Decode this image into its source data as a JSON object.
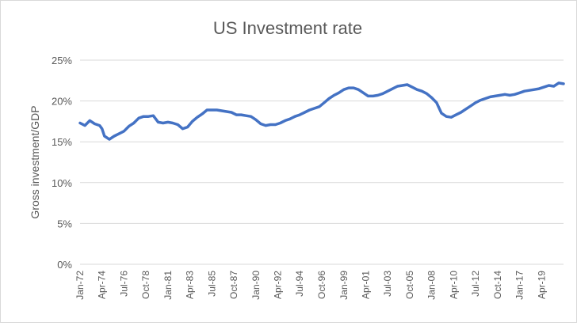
{
  "chart_data": {
    "type": "line",
    "title": "US Investment rate",
    "xlabel": "",
    "ylabel": "Gross investment/GDP",
    "ylim": [
      0,
      25
    ],
    "ytick_labels": [
      "0%",
      "5%",
      "10%",
      "15%",
      "20%",
      "25%"
    ],
    "x_tick_labels": [
      "Jan-72",
      "Apr-74",
      "Jul-76",
      "Oct-78",
      "Jan-81",
      "Apr-83",
      "Jul-85",
      "Oct-87",
      "Jan-90",
      "Apr-92",
      "Jul-94",
      "Oct-96",
      "Jan-99",
      "Apr-01",
      "Jul-03",
      "Oct-05",
      "Jan-08",
      "Apr-10",
      "Jul-12",
      "Oct-14",
      "Jan-17",
      "Apr-19"
    ],
    "grid": true,
    "legend": "none",
    "line_color": "#4472c4",
    "series": [
      {
        "x": [
          "1972-01-01",
          "1972-07-01",
          "1973-01-01",
          "1973-07-01",
          "1974-01-01",
          "1974-04-01",
          "1974-07-01",
          "1975-01-01",
          "1975-07-01",
          "1976-01-01",
          "1976-07-01",
          "1977-01-01",
          "1977-07-01",
          "1978-01-01",
          "1978-07-01",
          "1979-01-01",
          "1979-07-01",
          "1980-01-01",
          "1980-07-01",
          "1981-01-01",
          "1981-07-01",
          "1982-01-01",
          "1982-07-01",
          "1983-01-01",
          "1983-07-01",
          "1984-01-01",
          "1984-07-01",
          "1985-01-01",
          "1985-07-01",
          "1986-01-01",
          "1986-07-01",
          "1987-01-01",
          "1987-07-01",
          "1988-01-01",
          "1988-07-01",
          "1989-01-01",
          "1989-07-01",
          "1990-01-01",
          "1990-07-01",
          "1991-01-01",
          "1991-07-01",
          "1992-01-01",
          "1992-07-01",
          "1993-01-01",
          "1993-07-01",
          "1994-01-01",
          "1994-07-01",
          "1995-01-01",
          "1995-07-01",
          "1996-01-01",
          "1996-07-01",
          "1997-01-01",
          "1997-07-01",
          "1998-01-01",
          "1998-07-01",
          "1999-01-01",
          "1999-07-01",
          "2000-01-01",
          "2000-07-01",
          "2001-01-01",
          "2001-07-01",
          "2002-01-01",
          "2002-07-01",
          "2003-01-01",
          "2003-07-01",
          "2004-01-01",
          "2004-07-01",
          "2005-01-01",
          "2005-07-01",
          "2006-01-01",
          "2006-07-01",
          "2007-01-01",
          "2007-07-01",
          "2008-01-01",
          "2008-07-01",
          "2009-01-01",
          "2009-07-01",
          "2010-01-01",
          "2010-07-01",
          "2011-01-01",
          "2011-07-01",
          "2012-01-01",
          "2012-07-01",
          "2013-01-01",
          "2013-07-01",
          "2014-01-01",
          "2014-07-01",
          "2015-01-01",
          "2015-07-01",
          "2016-01-01",
          "2016-07-01",
          "2017-01-01",
          "2017-07-01",
          "2018-01-01",
          "2018-07-01",
          "2019-01-01",
          "2019-07-01",
          "2020-01-01",
          "2020-07-01",
          "2021-01-01",
          "2021-07-01"
        ],
        "values": [
          17.3,
          17.0,
          17.6,
          17.2,
          17.0,
          16.6,
          15.7,
          15.3,
          15.7,
          16.0,
          16.3,
          16.9,
          17.3,
          17.9,
          18.1,
          18.1,
          18.2,
          17.4,
          17.3,
          17.4,
          17.3,
          17.1,
          16.6,
          16.8,
          17.5,
          18.0,
          18.4,
          18.9,
          18.9,
          18.9,
          18.8,
          18.7,
          18.6,
          18.3,
          18.3,
          18.2,
          18.1,
          17.7,
          17.2,
          17.0,
          17.1,
          17.1,
          17.3,
          17.6,
          17.8,
          18.1,
          18.3,
          18.6,
          18.9,
          19.1,
          19.3,
          19.8,
          20.3,
          20.7,
          21.0,
          21.4,
          21.6,
          21.6,
          21.4,
          21.0,
          20.6,
          20.6,
          20.7,
          20.9,
          21.2,
          21.5,
          21.8,
          21.9,
          22.0,
          21.7,
          21.4,
          21.2,
          20.9,
          20.4,
          19.8,
          18.5,
          18.1,
          18.0,
          18.3,
          18.6,
          19.0,
          19.4,
          19.8,
          20.1,
          20.3,
          20.5,
          20.6,
          20.7,
          20.8,
          20.7,
          20.8,
          21.0,
          21.2,
          21.3,
          21.4,
          21.5,
          21.7,
          21.9,
          21.8,
          22.2,
          22.1
        ]
      }
    ]
  }
}
